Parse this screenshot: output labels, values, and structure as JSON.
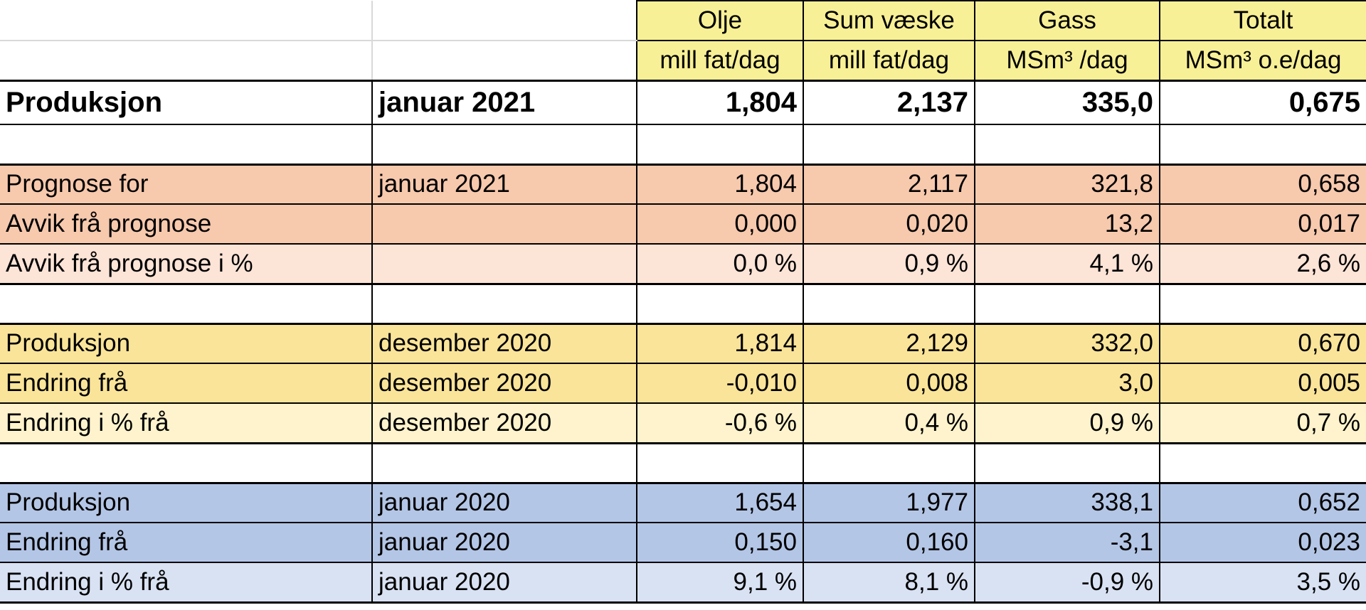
{
  "header": {
    "row1": [
      "Olje",
      "Sum væske",
      "Gass",
      "Totalt"
    ],
    "row2": [
      "mill fat/dag",
      "mill fat/dag",
      "MSm³ /dag",
      "MSm³ o.e/dag"
    ]
  },
  "main": {
    "label": "Produksjon",
    "period": "januar 2021",
    "values": [
      "1,804",
      "2,137",
      "335,0",
      "0,675"
    ]
  },
  "groups": [
    {
      "rows": [
        {
          "label": "Prognose for",
          "period": "januar 2021",
          "values": [
            "1,804",
            "2,117",
            "321,8",
            "0,658"
          ]
        },
        {
          "label": "Avvik frå prognose",
          "period": "",
          "values": [
            "0,000",
            "0,020",
            "13,2",
            "0,017"
          ]
        },
        {
          "label": "Avvik frå prognose i %",
          "period": "",
          "values": [
            "0,0 %",
            "0,9 %",
            "4,1 %",
            "2,6 %"
          ]
        }
      ]
    },
    {
      "rows": [
        {
          "label": "Produksjon",
          "period": "desember 2020",
          "values": [
            "1,814",
            "2,129",
            "332,0",
            "0,670"
          ]
        },
        {
          "label": "Endring frå",
          "period": "desember 2020",
          "values": [
            "-0,010",
            "0,008",
            "3,0",
            "0,005"
          ]
        },
        {
          "label": "Endring i % frå",
          "period": "desember 2020",
          "values": [
            "-0,6 %",
            "0,4 %",
            "0,9 %",
            "0,7 %"
          ]
        }
      ]
    },
    {
      "rows": [
        {
          "label": "Produksjon",
          "period": "januar 2020",
          "values": [
            "1,654",
            "1,977",
            "338,1",
            "0,652"
          ]
        },
        {
          "label": "Endring frå",
          "period": "januar 2020",
          "values": [
            "0,150",
            "0,160",
            "-3,1",
            "0,023"
          ]
        },
        {
          "label": "Endring i % frå",
          "period": "januar 2020",
          "values": [
            "9,1 %",
            "8,1 %",
            "-0,9 %",
            "3,5 %"
          ]
        }
      ]
    }
  ],
  "colors": {
    "header_yellow": "#f8f096",
    "salmon": "#f7c9ad",
    "salmon_light": "#fce4d7",
    "gold": "#fae499",
    "gold_light": "#fef3cc",
    "blue": "#b4c6e6",
    "blue_light": "#d9e2f3"
  }
}
